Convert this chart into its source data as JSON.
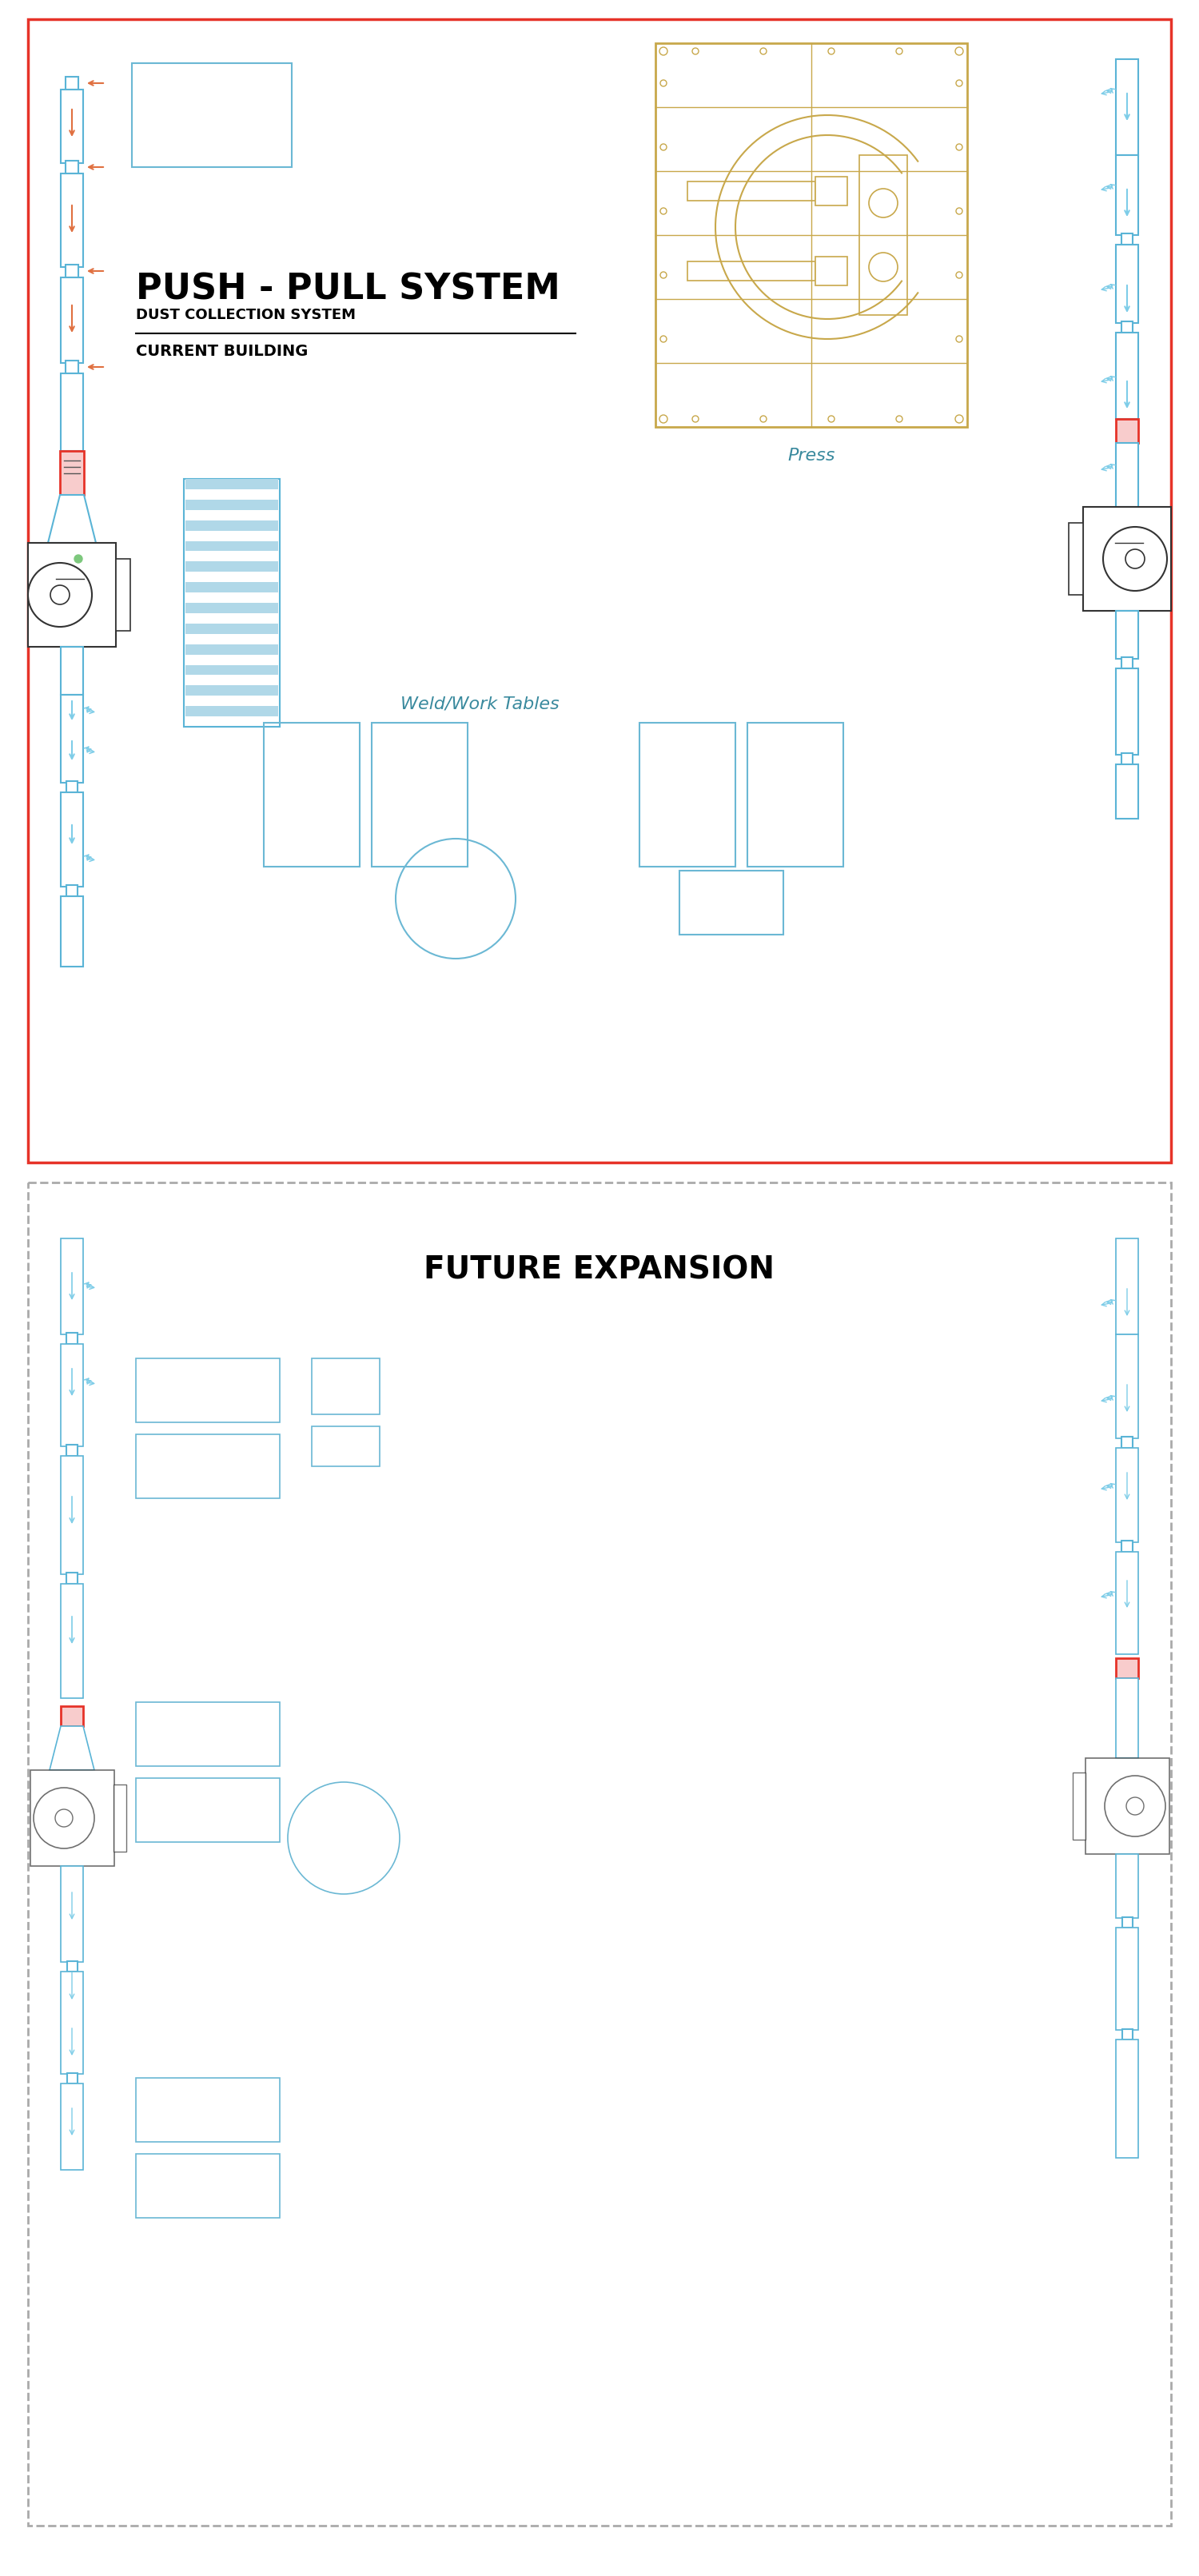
{
  "bg_color": "#ffffff",
  "border_red": "#e63329",
  "pipe_blue": "#5ab4d6",
  "pipe_blue_light": "#7ecde8",
  "gold": "#c8a84b",
  "dark_gray": "#333333",
  "teal": "#3a8a9e",
  "title": "PUSH - PULL SYSTEM",
  "subtitle": "DUST COLLECTION SYSTEM",
  "section_label": "CURRENT BUILDING",
  "future_label": "FUTURE EXPANSION",
  "press_label": "Press",
  "weld_label": "Weld/Work Tables",
  "page_width": 15.0,
  "page_height": 32.23
}
